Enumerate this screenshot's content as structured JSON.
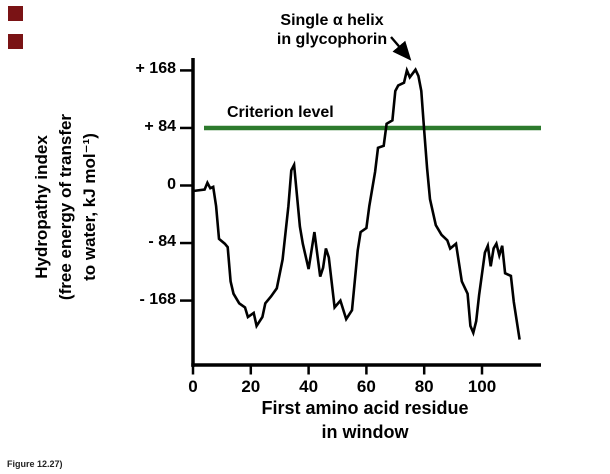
{
  "decorations": {
    "bullet_color": "#7a1315",
    "caption": "Figure 12.27)"
  },
  "annotation": {
    "line1": "Single α helix",
    "line2": "in glycophorin"
  },
  "criterion": {
    "label": "Criterion level",
    "color": "#2d7a2d",
    "value": 84
  },
  "axes": {
    "y_title_lines": [
      "Hydropathy index",
      "(free energy of transfer",
      "to water, kJ mol⁻¹)"
    ],
    "x_title_lines": [
      "First amino acid residue",
      "in window"
    ]
  },
  "chart_data": {
    "type": "line",
    "title": "",
    "xlabel": "First amino acid residue in window",
    "ylabel": "Hydropathy index (free energy of transfer to water, kJ mol⁻¹)",
    "xlim": [
      0,
      115
    ],
    "ylim": [
      -230,
      185
    ],
    "grid": false,
    "legend": "none",
    "x_ticks": [
      0,
      20,
      40,
      60,
      80,
      100
    ],
    "y_ticks": [
      168,
      84,
      0,
      -84,
      -168
    ],
    "y_tick_labels": [
      "+ 168",
      "+ 84",
      "0",
      "- 84",
      "- 168"
    ],
    "criterion_level": 84,
    "annotations": [
      "Single α helix in glycophorin",
      "Criterion level"
    ],
    "series": [
      {
        "name": "hydropathy",
        "points": [
          [
            0,
            -8
          ],
          [
            4,
            -6
          ],
          [
            5,
            4
          ],
          [
            6,
            -4
          ],
          [
            7,
            -2
          ],
          [
            8,
            -30
          ],
          [
            9,
            -78
          ],
          [
            11,
            -85
          ],
          [
            12,
            -90
          ],
          [
            13,
            -140
          ],
          [
            14,
            -158
          ],
          [
            16,
            -172
          ],
          [
            18,
            -178
          ],
          [
            19,
            -192
          ],
          [
            21,
            -186
          ],
          [
            22,
            -205
          ],
          [
            24,
            -192
          ],
          [
            25,
            -172
          ],
          [
            27,
            -162
          ],
          [
            29,
            -150
          ],
          [
            31,
            -108
          ],
          [
            33,
            -30
          ],
          [
            34,
            22
          ],
          [
            35,
            30
          ],
          [
            36,
            -15
          ],
          [
            37,
            -60
          ],
          [
            38,
            -85
          ],
          [
            40,
            -122
          ],
          [
            42,
            -68
          ],
          [
            44,
            -133
          ],
          [
            45,
            -120
          ],
          [
            46,
            -92
          ],
          [
            47,
            -105
          ],
          [
            49,
            -178
          ],
          [
            51,
            -168
          ],
          [
            53,
            -195
          ],
          [
            55,
            -182
          ],
          [
            57,
            -95
          ],
          [
            58,
            -68
          ],
          [
            60,
            -62
          ],
          [
            61,
            -30
          ],
          [
            63,
            20
          ],
          [
            64,
            55
          ],
          [
            66,
            58
          ],
          [
            67,
            90
          ],
          [
            69,
            95
          ],
          [
            70,
            138
          ],
          [
            71,
            146
          ],
          [
            73,
            150
          ],
          [
            74,
            168
          ],
          [
            75,
            158
          ],
          [
            77,
            169
          ],
          [
            78,
            160
          ],
          [
            79,
            138
          ],
          [
            80,
            80
          ],
          [
            81,
            25
          ],
          [
            82,
            -20
          ],
          [
            84,
            -58
          ],
          [
            86,
            -72
          ],
          [
            88,
            -80
          ],
          [
            89,
            -92
          ],
          [
            91,
            -85
          ],
          [
            93,
            -140
          ],
          [
            95,
            -158
          ],
          [
            96,
            -205
          ],
          [
            97,
            -215
          ],
          [
            98,
            -198
          ],
          [
            99,
            -160
          ],
          [
            101,
            -98
          ],
          [
            102,
            -88
          ],
          [
            103,
            -118
          ],
          [
            104,
            -92
          ],
          [
            105,
            -85
          ],
          [
            106,
            -102
          ],
          [
            107,
            -88
          ],
          [
            108,
            -128
          ],
          [
            110,
            -132
          ],
          [
            111,
            -170
          ],
          [
            113,
            -225
          ]
        ]
      }
    ]
  }
}
